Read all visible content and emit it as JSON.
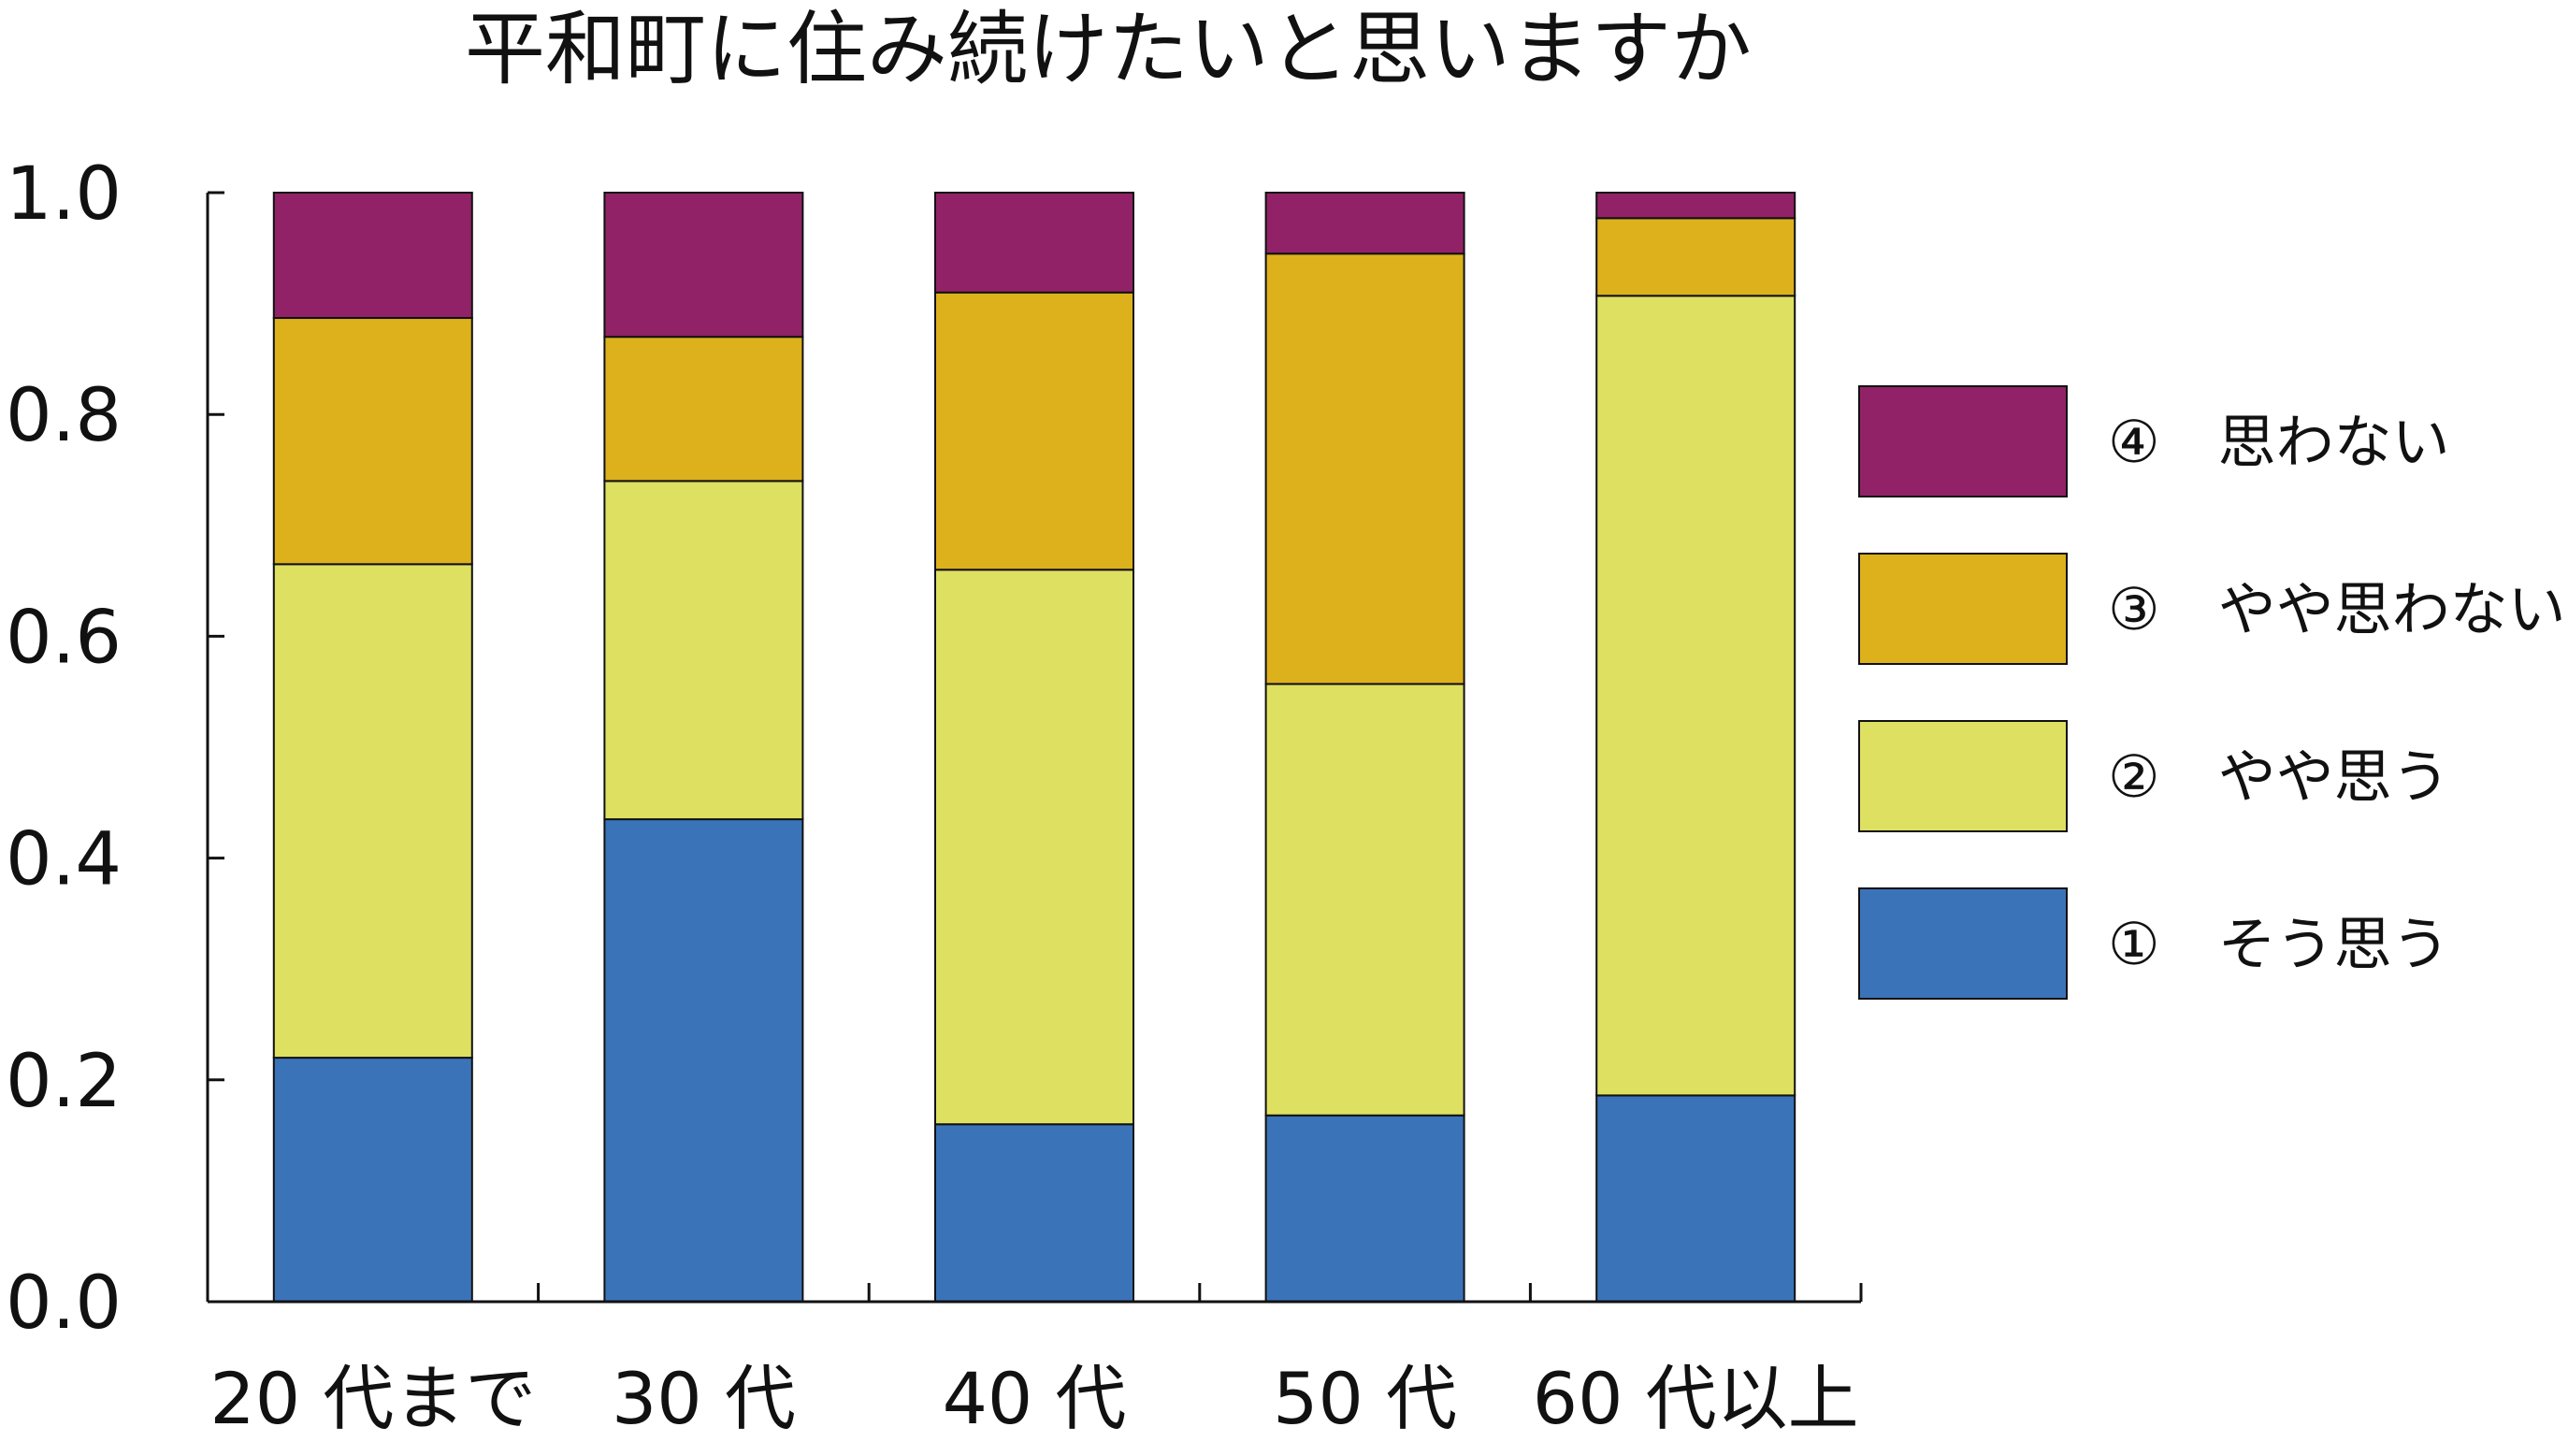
{
  "chart_data": {
    "type": "bar",
    "stacked": true,
    "title": "平和町に住み続けたいと思いますか",
    "xlabel": "",
    "ylabel": "",
    "categories": [
      "20 代まで",
      "30 代",
      "40 代",
      "50 代",
      "60 代以上"
    ],
    "series": [
      {
        "name": "①　そう思う",
        "color": "#3b73b9",
        "values": [
          0.22,
          0.435,
          0.16,
          0.168,
          0.186
        ]
      },
      {
        "name": "②　やや思う",
        "color": "#dee061",
        "values": [
          0.445,
          0.305,
          0.5,
          0.389,
          0.721
        ]
      },
      {
        "name": "③　やや思わない",
        "color": "#dcb11c",
        "values": [
          0.222,
          0.13,
          0.25,
          0.388,
          0.07
        ]
      },
      {
        "name": "④　思わない",
        "color": "#922267",
        "values": [
          0.113,
          0.13,
          0.09,
          0.055,
          0.023
        ]
      }
    ],
    "ylim": [
      0,
      1
    ],
    "yticks": [
      "0.0",
      "0.2",
      "0.4",
      "0.6",
      "0.8",
      "1.0"
    ],
    "grid": false,
    "legend_position": "right",
    "legend_order": "top-to-bottom: ④, ③, ②, ①"
  }
}
